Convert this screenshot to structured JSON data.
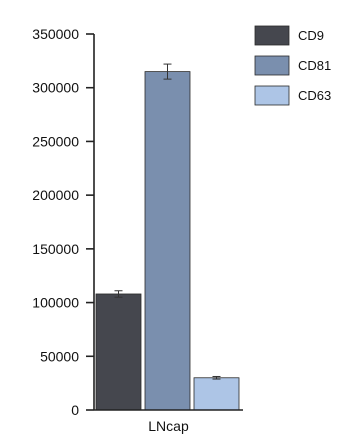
{
  "chart_data": {
    "type": "bar",
    "title": "",
    "xlabel": "",
    "ylabel": "",
    "categories": [
      "LNcap"
    ],
    "ylim": [
      0,
      350000
    ],
    "yticks": [
      0,
      50000,
      100000,
      150000,
      200000,
      250000,
      300000,
      350000
    ],
    "yticks_labels": [
      "0",
      "50000",
      "100000",
      "150000",
      "200000",
      "250000",
      "300000",
      "350000"
    ],
    "series": [
      {
        "name": "CD9",
        "values": [
          108000
        ],
        "error": [
          3000
        ],
        "color": "#45474e"
      },
      {
        "name": "CD81",
        "values": [
          315000
        ],
        "error": [
          7000
        ],
        "color": "#7a8fae"
      },
      {
        "name": "CD63",
        "values": [
          30000
        ],
        "error": [
          1200
        ],
        "color": "#adc5e6"
      }
    ],
    "legend": {
      "placement": "top-right"
    },
    "grid": false
  }
}
